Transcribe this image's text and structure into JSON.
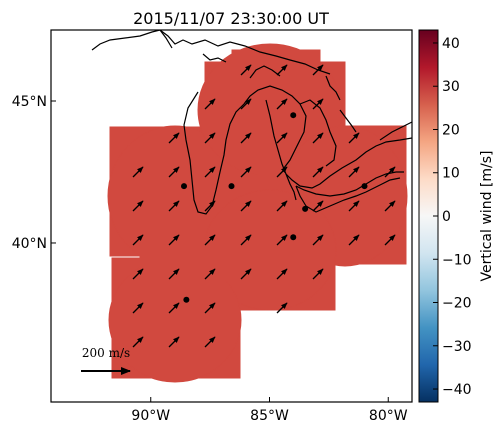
{
  "title": "2015/11/07 23:30:00 UT",
  "map": {
    "lon_range": [
      -94.2,
      -79.0
    ],
    "lat_range": [
      34.4,
      47.5
    ],
    "x_ticks": [
      {
        "lon": -90,
        "label": "90°W"
      },
      {
        "lon": -85,
        "label": "85°W"
      },
      {
        "lon": -80,
        "label": "80°W"
      }
    ],
    "y_ticks": [
      {
        "lat": 45,
        "label": "45°N"
      },
      {
        "lat": 40,
        "label": "40°N"
      }
    ],
    "fill_color": "#d1493f",
    "stations": [
      [
        -84.0,
        44.5
      ],
      [
        -88.6,
        42.0
      ],
      [
        -86.6,
        42.0
      ],
      [
        -83.5,
        41.2
      ],
      [
        -81.0,
        42.0
      ],
      [
        -84.0,
        40.2
      ],
      [
        -88.5,
        38.0
      ]
    ]
  },
  "reference_arrow": {
    "label": "200 m/s",
    "value": 200
  },
  "colorbar": {
    "label": "Vertical wind [m/s]",
    "min": -43,
    "max": 43,
    "ticks": [
      {
        "value": 40,
        "label": "40"
      },
      {
        "value": 30,
        "label": "30"
      },
      {
        "value": 20,
        "label": "20"
      },
      {
        "value": 10,
        "label": "10"
      },
      {
        "value": 0,
        "label": "0"
      },
      {
        "value": -10,
        "label": "−10"
      },
      {
        "value": -20,
        "label": "−20"
      },
      {
        "value": -30,
        "label": "−30"
      },
      {
        "value": -40,
        "label": "−40"
      }
    ],
    "colors": [
      "#053061",
      "#2166ac",
      "#4393c3",
      "#92c5de",
      "#d1e5f0",
      "#f7f7f7",
      "#fddbc7",
      "#f4a582",
      "#d6604d",
      "#b2182b",
      "#67001f"
    ]
  }
}
